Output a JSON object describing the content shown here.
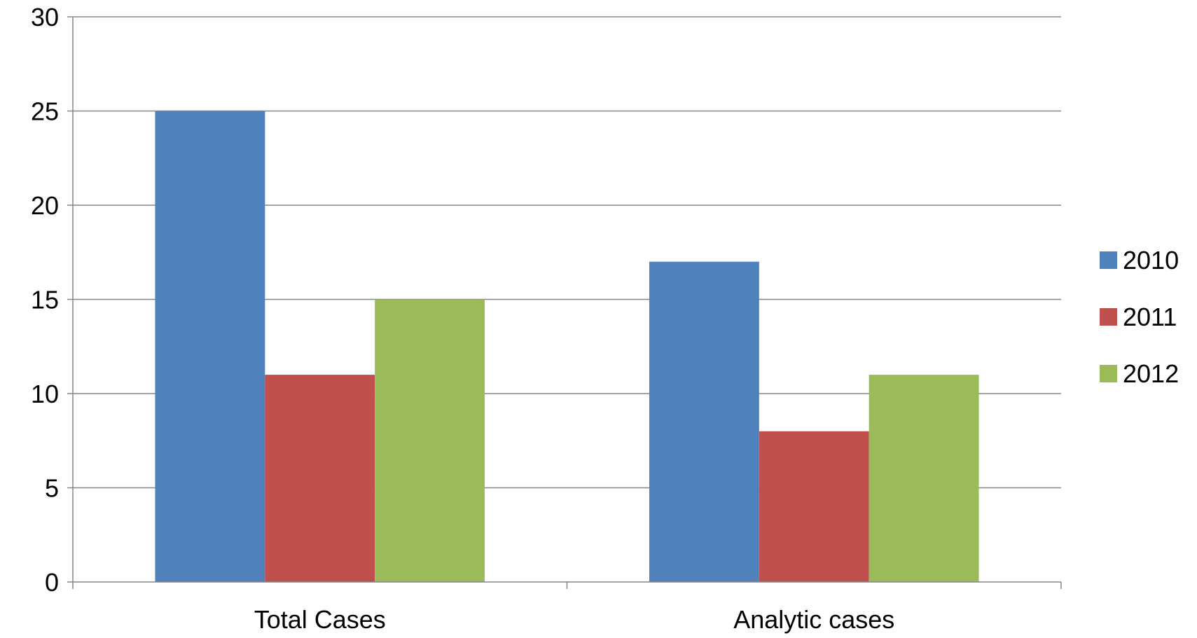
{
  "chart_data": {
    "type": "bar",
    "title": "",
    "xlabel": "",
    "ylabel": "",
    "categories": [
      "Total Cases",
      "Analytic cases"
    ],
    "series": [
      {
        "name": "2010",
        "color": "#4F81BD",
        "values": [
          25,
          17
        ]
      },
      {
        "name": "2011",
        "color": "#C0504D",
        "values": [
          11,
          8
        ]
      },
      {
        "name": "2012",
        "color": "#9BBB59",
        "values": [
          15,
          11
        ]
      }
    ],
    "ylim": [
      0,
      30
    ],
    "yticks": [
      "0",
      "5",
      "10",
      "15",
      "20",
      "25",
      "30"
    ],
    "grid": true,
    "legend_position": "right"
  }
}
